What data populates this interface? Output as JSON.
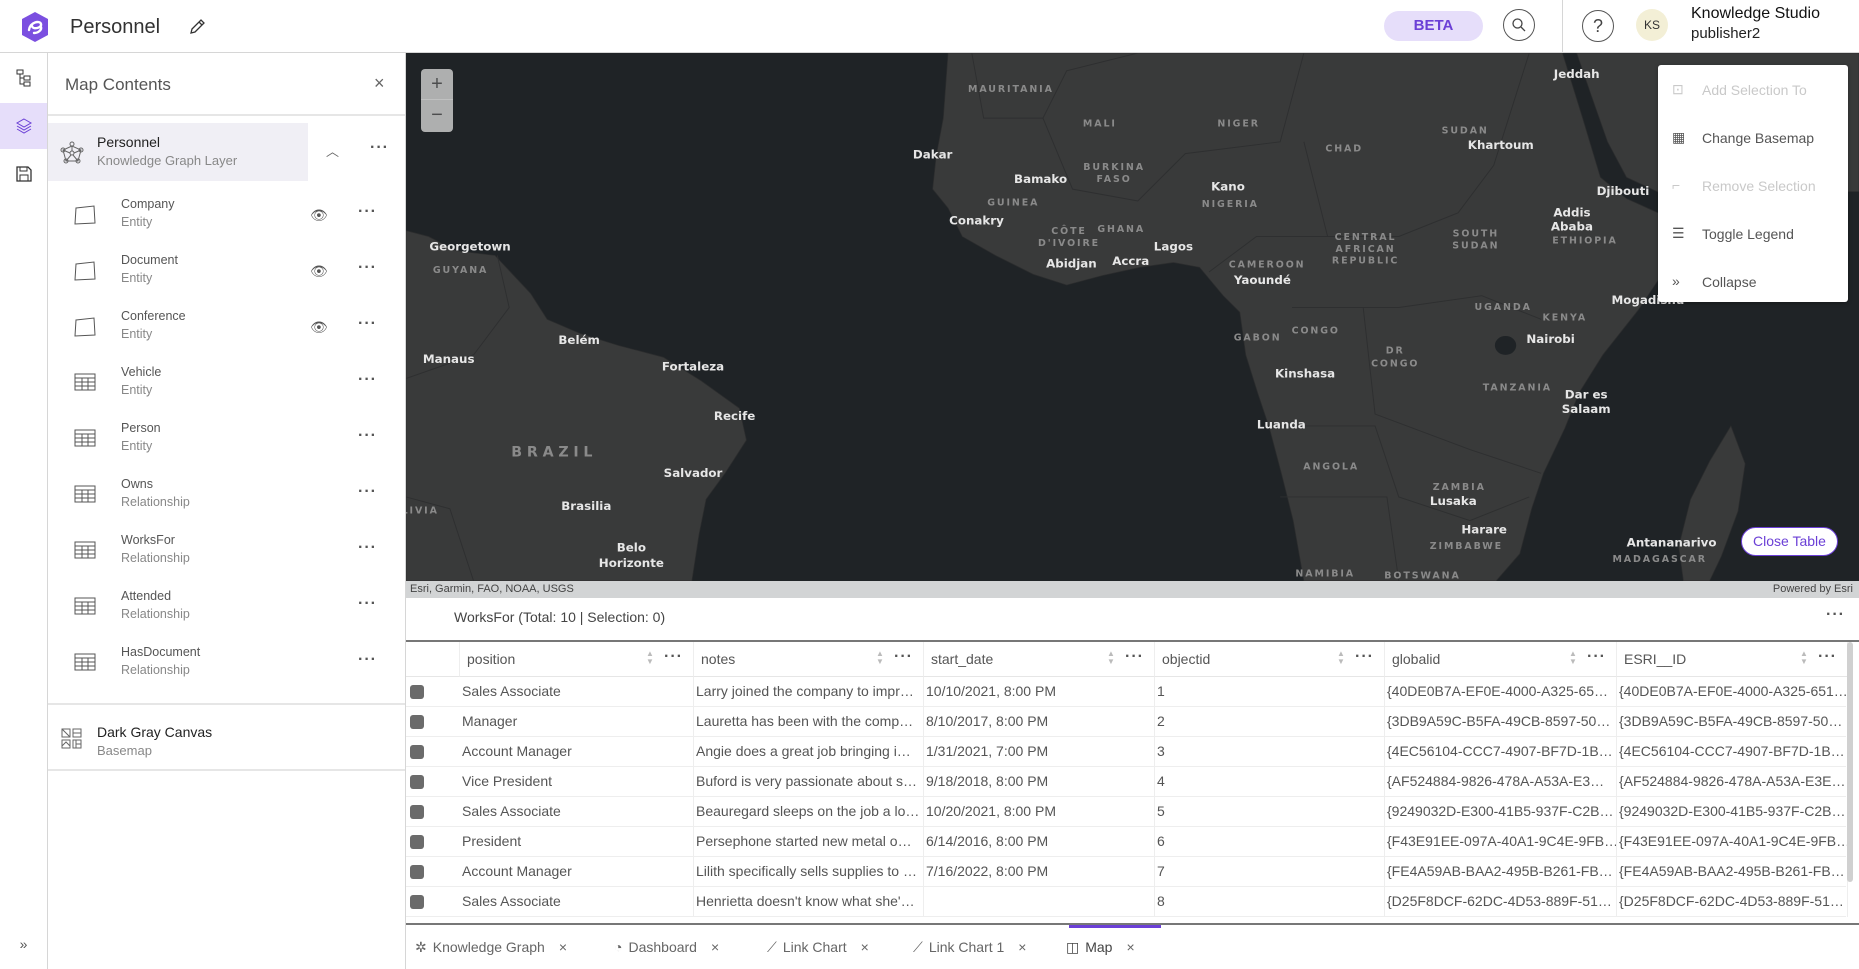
{
  "header": {
    "title": "Personnel",
    "beta_label": "BETA",
    "avatar_initials": "KS",
    "user_name": "Knowledge Studio",
    "user_role": "publisher2"
  },
  "panel": {
    "title": "Map Contents",
    "group": {
      "name": "Personnel",
      "type": "Knowledge Graph Layer"
    },
    "layers": [
      {
        "name": "Company",
        "type": "Entity",
        "icon": "polygon-icon",
        "visible": true
      },
      {
        "name": "Document",
        "type": "Entity",
        "icon": "polygon-icon",
        "visible": true
      },
      {
        "name": "Conference",
        "type": "Entity",
        "icon": "polygon-icon",
        "visible": true
      },
      {
        "name": "Vehicle",
        "type": "Entity",
        "icon": "table-icon",
        "visible": false
      },
      {
        "name": "Person",
        "type": "Entity",
        "icon": "table-icon",
        "visible": false
      },
      {
        "name": "Owns",
        "type": "Relationship",
        "icon": "table-icon",
        "visible": false
      },
      {
        "name": "WorksFor",
        "type": "Relationship",
        "icon": "table-icon",
        "visible": false
      },
      {
        "name": "Attended",
        "type": "Relationship",
        "icon": "table-icon",
        "visible": false
      },
      {
        "name": "HasDocument",
        "type": "Relationship",
        "icon": "table-icon",
        "visible": false
      }
    ],
    "basemap": {
      "name": "Dark Gray Canvas",
      "type": "Basemap"
    }
  },
  "map": {
    "attribution": "Esri, Garmin, FAO, NOAA, USGS",
    "powered_by": "Powered by Esri",
    "close_table_label": "Close Table",
    "menu": [
      {
        "label": "Add Selection To",
        "icon": "add-selection-icon",
        "disabled": true
      },
      {
        "label": "Change Basemap",
        "icon": "basemap-icon",
        "disabled": false
      },
      {
        "label": "Remove Selection",
        "icon": "remove-selection-icon",
        "disabled": true
      },
      {
        "label": "Toggle Legend",
        "icon": "legend-icon",
        "disabled": false
      },
      {
        "label": "Collapse",
        "icon": "chevrons-right-icon",
        "disabled": false
      }
    ],
    "cities": [
      "Jeddah",
      "Khartoum",
      "Dakar",
      "Bamako",
      "Djibouti",
      "Kano",
      "Addis",
      "Ababa",
      "Conakry",
      "Lagos",
      "Abidjan",
      "Accra",
      "Yaoundé",
      "Georgetown",
      "Manaus",
      "Belém",
      "Fortaleza",
      "Nairobi",
      "Kinshasa",
      "Mogadishu",
      "Dar es",
      "Salaam",
      "Recife",
      "Luanda",
      "Salvador",
      "Lusaka",
      "Brasilia",
      "Harare",
      "Antananarivo",
      "Belo",
      "Horizonte"
    ],
    "countries": [
      "MAURITANIA",
      "MALI",
      "NIGER",
      "SUDAN",
      "CHAD",
      "BURKINA",
      "FASO",
      "GUINEA",
      "CÔTE",
      "D'IVOIRE",
      "GHANA",
      "NIGERIA",
      "CENTRAL",
      "AFRICAN",
      "REPUBLIC",
      "SOUTH",
      "SUDAN",
      "ETHIOPIA",
      "CAMEROON",
      "UGANDA",
      "KENYA",
      "GABON",
      "CONGO",
      "DR",
      "CONGO",
      "TANZANIA",
      "ANGOLA",
      "ZAMBIA",
      "ZIMBABWE",
      "NAMIBIA",
      "MADAGASCAR",
      "BRAZIL",
      "GUYANA",
      "LIVIA",
      "BOTSWANA"
    ]
  },
  "table": {
    "title": "WorksFor (Total: 10 | Selection: 0)",
    "columns": [
      "position",
      "notes",
      "start_date",
      "objectid",
      "globalid",
      "ESRI__ID"
    ],
    "rows": [
      [
        "Sales Associate",
        "Larry joined the company to impr…",
        "10/10/2021, 8:00 PM",
        "1",
        "{40DE0B7A-EF0E-4000-A325-65…",
        "{40DE0B7A-EF0E-4000-A325-651…"
      ],
      [
        "Manager",
        "Lauretta has been with the comp…",
        "8/10/2017, 8:00 PM",
        "2",
        "{3DB9A59C-B5FA-49CB-8597-50…",
        "{3DB9A59C-B5FA-49CB-8597-50…"
      ],
      [
        "Account Manager",
        "Angie does a great job bringing i…",
        "1/31/2021, 7:00 PM",
        "3",
        "{4EC56104-CCC7-4907-BF7D-1B…",
        "{4EC56104-CCC7-4907-BF7D-1B…"
      ],
      [
        "Vice President",
        "Buford is very passionate about s…",
        "9/18/2018, 8:00 PM",
        "4",
        "{AF524884-9826-478A-A53A-E3…",
        "{AF524884-9826-478A-A53A-E3E…"
      ],
      [
        "Sales Associate",
        "Beauregard sleeps on the job a lo…",
        "10/20/2021, 8:00 PM",
        "5",
        "{9249032D-E300-41B5-937F-C2B…",
        "{9249032D-E300-41B5-937F-C2B…"
      ],
      [
        "President",
        "Persephone started new metal o…",
        "6/14/2016, 8:00 PM",
        "6",
        "{F43E91EE-097A-40A1-9C4E-9FB…",
        "{F43E91EE-097A-40A1-9C4E-9FB…"
      ],
      [
        "Account Manager",
        "Lilith specifically sells supplies to …",
        "7/16/2022, 8:00 PM",
        "7",
        "{FE4A59AB-BAA2-495B-B261-FB…",
        "{FE4A59AB-BAA2-495B-B261-FB…"
      ],
      [
        "Sales Associate",
        "Henrietta doesn't know what she'…",
        "",
        "8",
        "{D25F8DCF-62DC-4D53-889F-51…",
        "{D25F8DCF-62DC-4D53-889F-51…"
      ]
    ]
  },
  "tabs": [
    {
      "label": "Knowledge Graph",
      "icon": "knowledge-graph-icon",
      "active": false
    },
    {
      "label": "Dashboard",
      "icon": "dashboard-icon",
      "active": false
    },
    {
      "label": "Link Chart",
      "icon": "link-chart-icon",
      "active": false
    },
    {
      "label": "Link Chart 1",
      "icon": "link-chart-icon",
      "active": false
    },
    {
      "label": "Map",
      "icon": "map-icon",
      "active": true
    }
  ],
  "colors": {
    "accent": "#6b3fd6",
    "beta_bg": "#e6defa",
    "ocean": "#1f2326",
    "land": "#393a3a"
  }
}
